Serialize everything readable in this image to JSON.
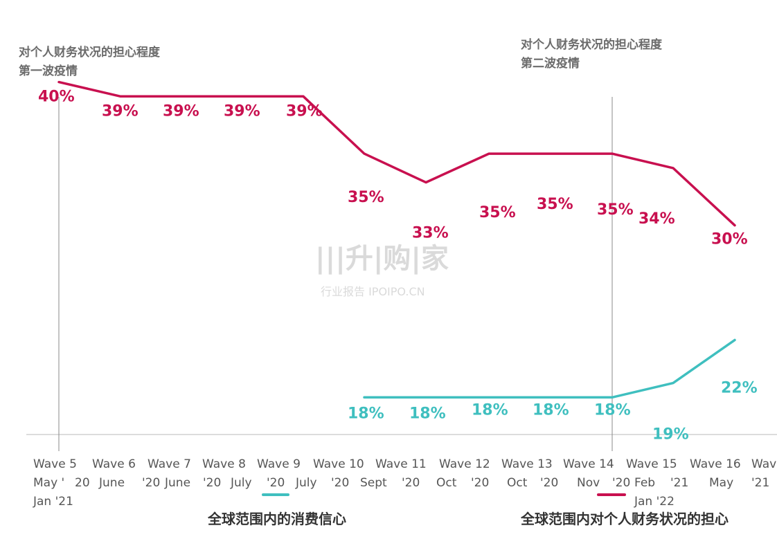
{
  "annotations": {
    "first_wave": [
      "对个人财务状况的担心程度",
      "第一波疫情"
    ],
    "second_wave": [
      "对个人财务状况的担心程度",
      "第二波疫情"
    ]
  },
  "legend": {
    "consumer": "全球范围内的消费信心",
    "worry": "全球范围内对个人财务状况的担心"
  },
  "watermark": {
    "brand": "|||升|购|家",
    "sub": "行业报告 IPOIPO.CN"
  },
  "colors": {
    "worry": "#c8104f",
    "consumer": "#3fbfbf",
    "axis": "#d0d0d0",
    "divider": "#8a8a8a",
    "tick_text": "#555555"
  },
  "chart_data": {
    "type": "line",
    "x_tick_labels": [
      "Wave 5",
      "May '",
      "20",
      "Wave 6",
      "June",
      "'20",
      "Wave 7",
      "June",
      "Wave 8",
      "'20",
      "July",
      "Wave 9",
      "'20",
      "July",
      "Wave 10",
      "'20",
      "Sept",
      "Wave 11",
      "'20",
      "Oct",
      "Wave 12",
      "'20",
      "Oct",
      "Wave 13",
      "'20",
      "Nov",
      "Wave 14",
      "'20",
      "Feb",
      "Wave 15",
      "'21",
      "May",
      "Wave 16",
      "'21",
      "Wav",
      "Jan '21",
      "Jan '22"
    ],
    "categories": [
      "Wave 5",
      "Wave 6",
      "Wave 7",
      "Wave 8",
      "Wave 9",
      "Wave 10",
      "Wave 11",
      "Wave 12",
      "Wave 13",
      "Wave 14",
      "Wave 15",
      "Wave 16"
    ],
    "series": [
      {
        "key": "worry",
        "values": [
          40,
          39,
          39,
          39,
          39,
          35,
          33,
          35,
          35,
          35,
          34,
          30
        ],
        "labels": [
          "40%",
          "39%",
          "39%",
          "39%",
          "39%",
          "35%",
          "33%",
          "35%",
          "35%",
          "35%",
          "34%",
          "30%"
        ]
      },
      {
        "key": "consumer",
        "values": [
          null,
          null,
          null,
          null,
          null,
          18,
          18,
          18,
          18,
          18,
          19,
          22
        ],
        "labels": [
          "",
          "",
          "",
          "",
          "",
          "18%",
          "18%",
          "18%",
          "18%",
          "18%",
          "19%",
          "22%"
        ]
      }
    ],
    "ylim": [
      10,
      45
    ],
    "markers_at": [
      "Wave 5",
      "Wave 14"
    ]
  }
}
